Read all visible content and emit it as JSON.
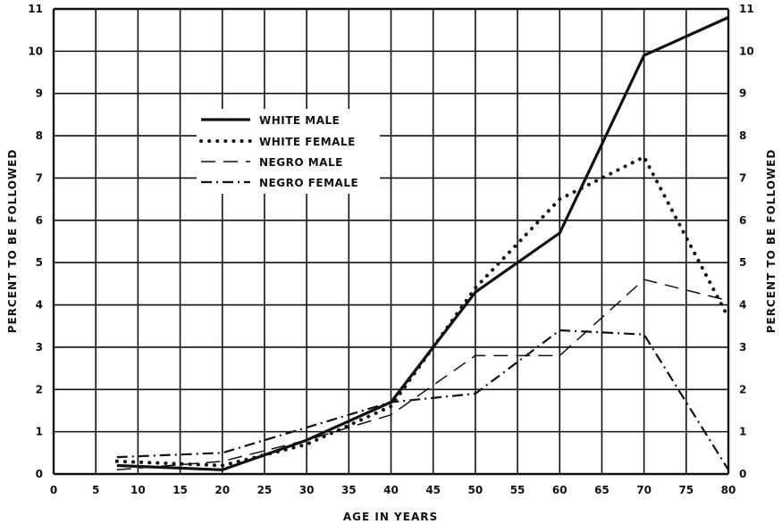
{
  "chart_data": {
    "type": "line",
    "xlabel": "AGE IN YEARS",
    "ylabel_left": "PERCENT TO BE FOLLOWED",
    "ylabel_right": "PERCENT TO BE FOLLOWED",
    "xlim": [
      0,
      80
    ],
    "ylim": [
      0,
      11
    ],
    "x_ticks": [
      0,
      5,
      10,
      15,
      20,
      25,
      30,
      35,
      40,
      45,
      50,
      55,
      60,
      65,
      70,
      75,
      80
    ],
    "y_ticks": [
      0,
      1,
      2,
      3,
      4,
      5,
      6,
      7,
      8,
      9,
      10,
      11
    ],
    "grid": true,
    "legend_position": "upper-left",
    "series": [
      {
        "name": "WHITE MALE",
        "style": "solid",
        "points": [
          [
            7.5,
            0.2
          ],
          [
            20,
            0.1
          ],
          [
            30,
            0.8
          ],
          [
            40,
            1.7
          ],
          [
            50,
            4.3
          ],
          [
            60,
            5.7
          ],
          [
            70,
            9.9
          ],
          [
            80,
            10.8
          ]
        ]
      },
      {
        "name": "WHITE FEMALE",
        "style": "dotted",
        "points": [
          [
            7.5,
            0.3
          ],
          [
            20,
            0.2
          ],
          [
            30,
            0.7
          ],
          [
            40,
            1.6
          ],
          [
            50,
            4.4
          ],
          [
            60,
            6.5
          ],
          [
            70,
            7.5
          ],
          [
            80,
            3.7
          ]
        ]
      },
      {
        "name": "NEGRO MALE",
        "style": "dashed",
        "points": [
          [
            7.5,
            0.1
          ],
          [
            20,
            0.3
          ],
          [
            30,
            0.8
          ],
          [
            40,
            1.4
          ],
          [
            50,
            2.8
          ],
          [
            60,
            2.8
          ],
          [
            70,
            4.6
          ],
          [
            80,
            4.1
          ]
        ]
      },
      {
        "name": "NEGRO FEMALE",
        "style": "dashdot",
        "points": [
          [
            7.5,
            0.4
          ],
          [
            20,
            0.5
          ],
          [
            30,
            1.1
          ],
          [
            40,
            1.7
          ],
          [
            50,
            1.9
          ],
          [
            60,
            3.4
          ],
          [
            70,
            3.3
          ],
          [
            80,
            0.1
          ]
        ]
      }
    ]
  }
}
